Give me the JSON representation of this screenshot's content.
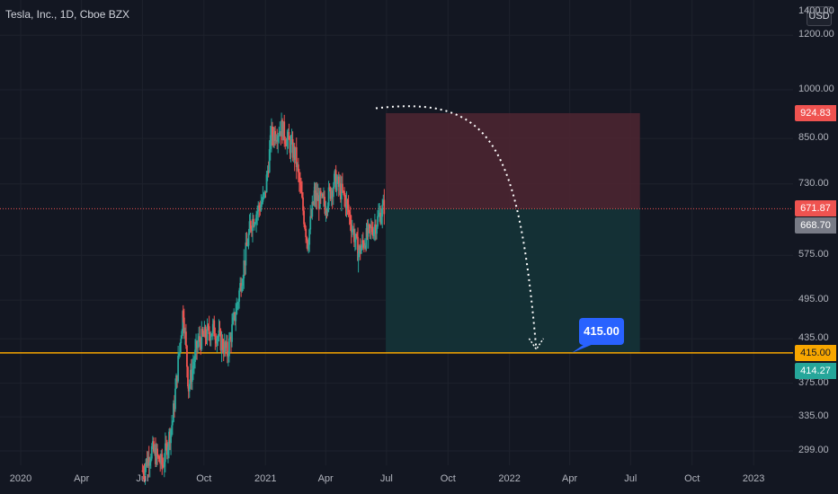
{
  "header": {
    "symbol": "Tesla, Inc., 1D, Cboe BZX",
    "currency": "USD",
    "top_cut_label": "1400.00"
  },
  "colors": {
    "background": "#131722",
    "grid": "#1e222d",
    "up": "#26a69a",
    "down": "#ef5350",
    "stop_zone": "#4b2531",
    "target_zone": "#143237",
    "target_line": "#f7a600",
    "entry_line": "#ef5350",
    "callout": "#2962ff",
    "arrow": "#ffffff",
    "current_tag": "#787b86"
  },
  "labels": {
    "stop_price": "924.83",
    "entry_price": "671.87",
    "current_price": "668.70",
    "target_price": "415.00",
    "target_price_low": "414.27",
    "callout": "415.00"
  },
  "chart_data": {
    "type": "candlestick",
    "title": "Tesla, Inc., 1D, Cboe BZX",
    "y_axis": {
      "scale": "log",
      "ticks": [
        "1200.00",
        "1000.00",
        "850.00",
        "730.00",
        "575.00",
        "495.00",
        "435.00",
        "375.00",
        "335.00",
        "299.00"
      ],
      "ylim": [
        285,
        1350
      ]
    },
    "x_axis": {
      "ticks": [
        "2020",
        "Apr",
        "Jul",
        "Oct",
        "2021",
        "Apr",
        "Jul",
        "Oct",
        "2022",
        "Apr",
        "Jul",
        "Oct",
        "2023"
      ],
      "range": [
        "2019-12-01",
        "2023-03-01"
      ]
    },
    "price_series": [
      [
        "2020-07-01",
        280
      ],
      [
        "2020-07-15",
        300
      ],
      [
        "2020-07-31",
        285
      ],
      [
        "2020-08-15",
        330
      ],
      [
        "2020-08-31",
        480
      ],
      [
        "2020-09-08",
        370
      ],
      [
        "2020-09-22",
        430
      ],
      [
        "2020-10-15",
        450
      ],
      [
        "2020-11-05",
        415
      ],
      [
        "2020-11-20",
        490
      ],
      [
        "2020-12-10",
        640
      ],
      [
        "2020-12-31",
        700
      ],
      [
        "2021-01-10",
        860
      ],
      [
        "2021-01-25",
        880
      ],
      [
        "2021-02-15",
        800
      ],
      [
        "2021-03-05",
        600
      ],
      [
        "2021-03-15",
        700
      ],
      [
        "2021-03-31",
        680
      ],
      [
        "2021-04-15",
        740
      ],
      [
        "2021-05-01",
        690
      ],
      [
        "2021-05-20",
        580
      ],
      [
        "2021-06-01",
        610
      ],
      [
        "2021-06-15",
        640
      ],
      [
        "2021-06-28",
        680
      ]
    ],
    "position": {
      "start": "2021-06-30",
      "end": "2022-07-15",
      "stop": 924.83,
      "entry": 671.87,
      "target": 415.0,
      "current": 668.7,
      "target_low": 414.27
    },
    "annotation": {
      "text": "415.00",
      "arrow_start": [
        "2021-06-15",
        940
      ],
      "arrow_end": [
        "2022-02-10",
        420
      ]
    },
    "grid": true
  }
}
